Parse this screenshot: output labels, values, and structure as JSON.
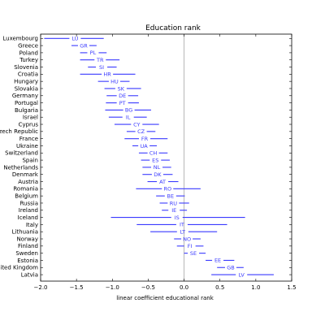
{
  "chart_data": {
    "type": "errorbar",
    "title": "Education rank",
    "xlabel": "linear coefficient educational rank",
    "ylabel": "",
    "xlim": [
      -2.0,
      1.5
    ],
    "xticks": [
      -2.0,
      -1.5,
      -1.0,
      -0.5,
      0.0,
      0.5,
      1.0,
      1.5
    ],
    "xtick_labels": [
      "−2.0",
      "−1.5",
      "−1.0",
      "−0.5",
      "0.0",
      "0.5",
      "1.0",
      "1.5"
    ],
    "reference_line_x": 0.0,
    "line_color": "#3a3aff",
    "countries": [
      {
        "name": "Luxembourg",
        "code": "LU",
        "estimate": -1.52,
        "low": -1.95,
        "high": -1.12
      },
      {
        "name": "Greece",
        "code": "GR",
        "estimate": -1.4,
        "low": -1.57,
        "high": -1.22
      },
      {
        "name": "Poland",
        "code": "PL",
        "estimate": -1.27,
        "low": -1.45,
        "high": -1.08
      },
      {
        "name": "Turkey",
        "code": "TR",
        "estimate": -1.17,
        "low": -1.45,
        "high": -0.9
      },
      {
        "name": "Slovenia",
        "code": "SI",
        "estimate": -1.15,
        "low": -1.34,
        "high": -0.94
      },
      {
        "name": "Croatia",
        "code": "HR",
        "estimate": -1.07,
        "low": -1.45,
        "high": -0.68
      },
      {
        "name": "Hungary",
        "code": "HU",
        "estimate": -0.97,
        "low": -1.2,
        "high": -0.76
      },
      {
        "name": "Slovakia",
        "code": "SK",
        "estimate": -0.88,
        "low": -1.11,
        "high": -0.6
      },
      {
        "name": "Germany",
        "code": "DE",
        "estimate": -0.86,
        "low": -1.08,
        "high": -0.64
      },
      {
        "name": "Portugal",
        "code": "PT",
        "estimate": -0.86,
        "low": -1.09,
        "high": -0.63
      },
      {
        "name": "Bulgaria",
        "code": "BG",
        "estimate": -0.77,
        "low": -1.1,
        "high": -0.46
      },
      {
        "name": "Israel",
        "code": "IL",
        "estimate": -0.78,
        "low": -1.05,
        "high": -0.52
      },
      {
        "name": "Cyprus",
        "code": "CY",
        "estimate": -0.66,
        "low": -0.97,
        "high": -0.35
      },
      {
        "name": "Czech Republic",
        "code": "CZ",
        "estimate": -0.6,
        "low": -0.8,
        "high": -0.4
      },
      {
        "name": "France",
        "code": "FR",
        "estimate": -0.55,
        "low": -0.83,
        "high": -0.23
      },
      {
        "name": "Ukraine",
        "code": "UA",
        "estimate": -0.56,
        "low": -0.72,
        "high": -0.38
      },
      {
        "name": "Switzerland",
        "code": "CH",
        "estimate": -0.43,
        "low": -0.63,
        "high": -0.23
      },
      {
        "name": "Spain",
        "code": "ES",
        "estimate": -0.4,
        "low": -0.6,
        "high": -0.2
      },
      {
        "name": "Netherlands",
        "code": "NL",
        "estimate": -0.38,
        "low": -0.58,
        "high": -0.18
      },
      {
        "name": "Denmark",
        "code": "DK",
        "estimate": -0.37,
        "low": -0.58,
        "high": -0.16
      },
      {
        "name": "Austria",
        "code": "AT",
        "estimate": -0.3,
        "low": -0.51,
        "high": -0.08
      },
      {
        "name": "Romania",
        "code": "RO",
        "estimate": -0.23,
        "low": -0.67,
        "high": 0.23
      },
      {
        "name": "Belgium",
        "code": "BE",
        "estimate": -0.19,
        "low": -0.39,
        "high": 0.01
      },
      {
        "name": "Russia",
        "code": "RU",
        "estimate": -0.15,
        "low": -0.34,
        "high": 0.07
      },
      {
        "name": "Ireland",
        "code": "IE",
        "estimate": -0.14,
        "low": -0.31,
        "high": 0.04
      },
      {
        "name": "Iceland",
        "code": "IS",
        "estimate": -0.1,
        "low": -1.02,
        "high": 0.85
      },
      {
        "name": "Italy",
        "code": "IT",
        "estimate": -0.03,
        "low": -0.66,
        "high": 0.6
      },
      {
        "name": "Lithuania",
        "code": "LT",
        "estimate": -0.02,
        "low": -0.47,
        "high": 0.46
      },
      {
        "name": "Norway",
        "code": "NO",
        "estimate": 0.04,
        "low": -0.14,
        "high": 0.23
      },
      {
        "name": "Finland",
        "code": "FI",
        "estimate": 0.08,
        "low": -0.1,
        "high": 0.27
      },
      {
        "name": "Sweden",
        "code": "SE",
        "estimate": 0.13,
        "low": 0.0,
        "high": 0.3
      },
      {
        "name": "Estonia",
        "code": "EE",
        "estimate": 0.47,
        "low": 0.3,
        "high": 0.7
      },
      {
        "name": "United Kingdom",
        "code": "GB",
        "estimate": 0.65,
        "low": 0.46,
        "high": 0.83
      },
      {
        "name": "Latvia",
        "code": "LV",
        "estimate": 0.8,
        "low": 0.38,
        "high": 1.25
      }
    ]
  }
}
